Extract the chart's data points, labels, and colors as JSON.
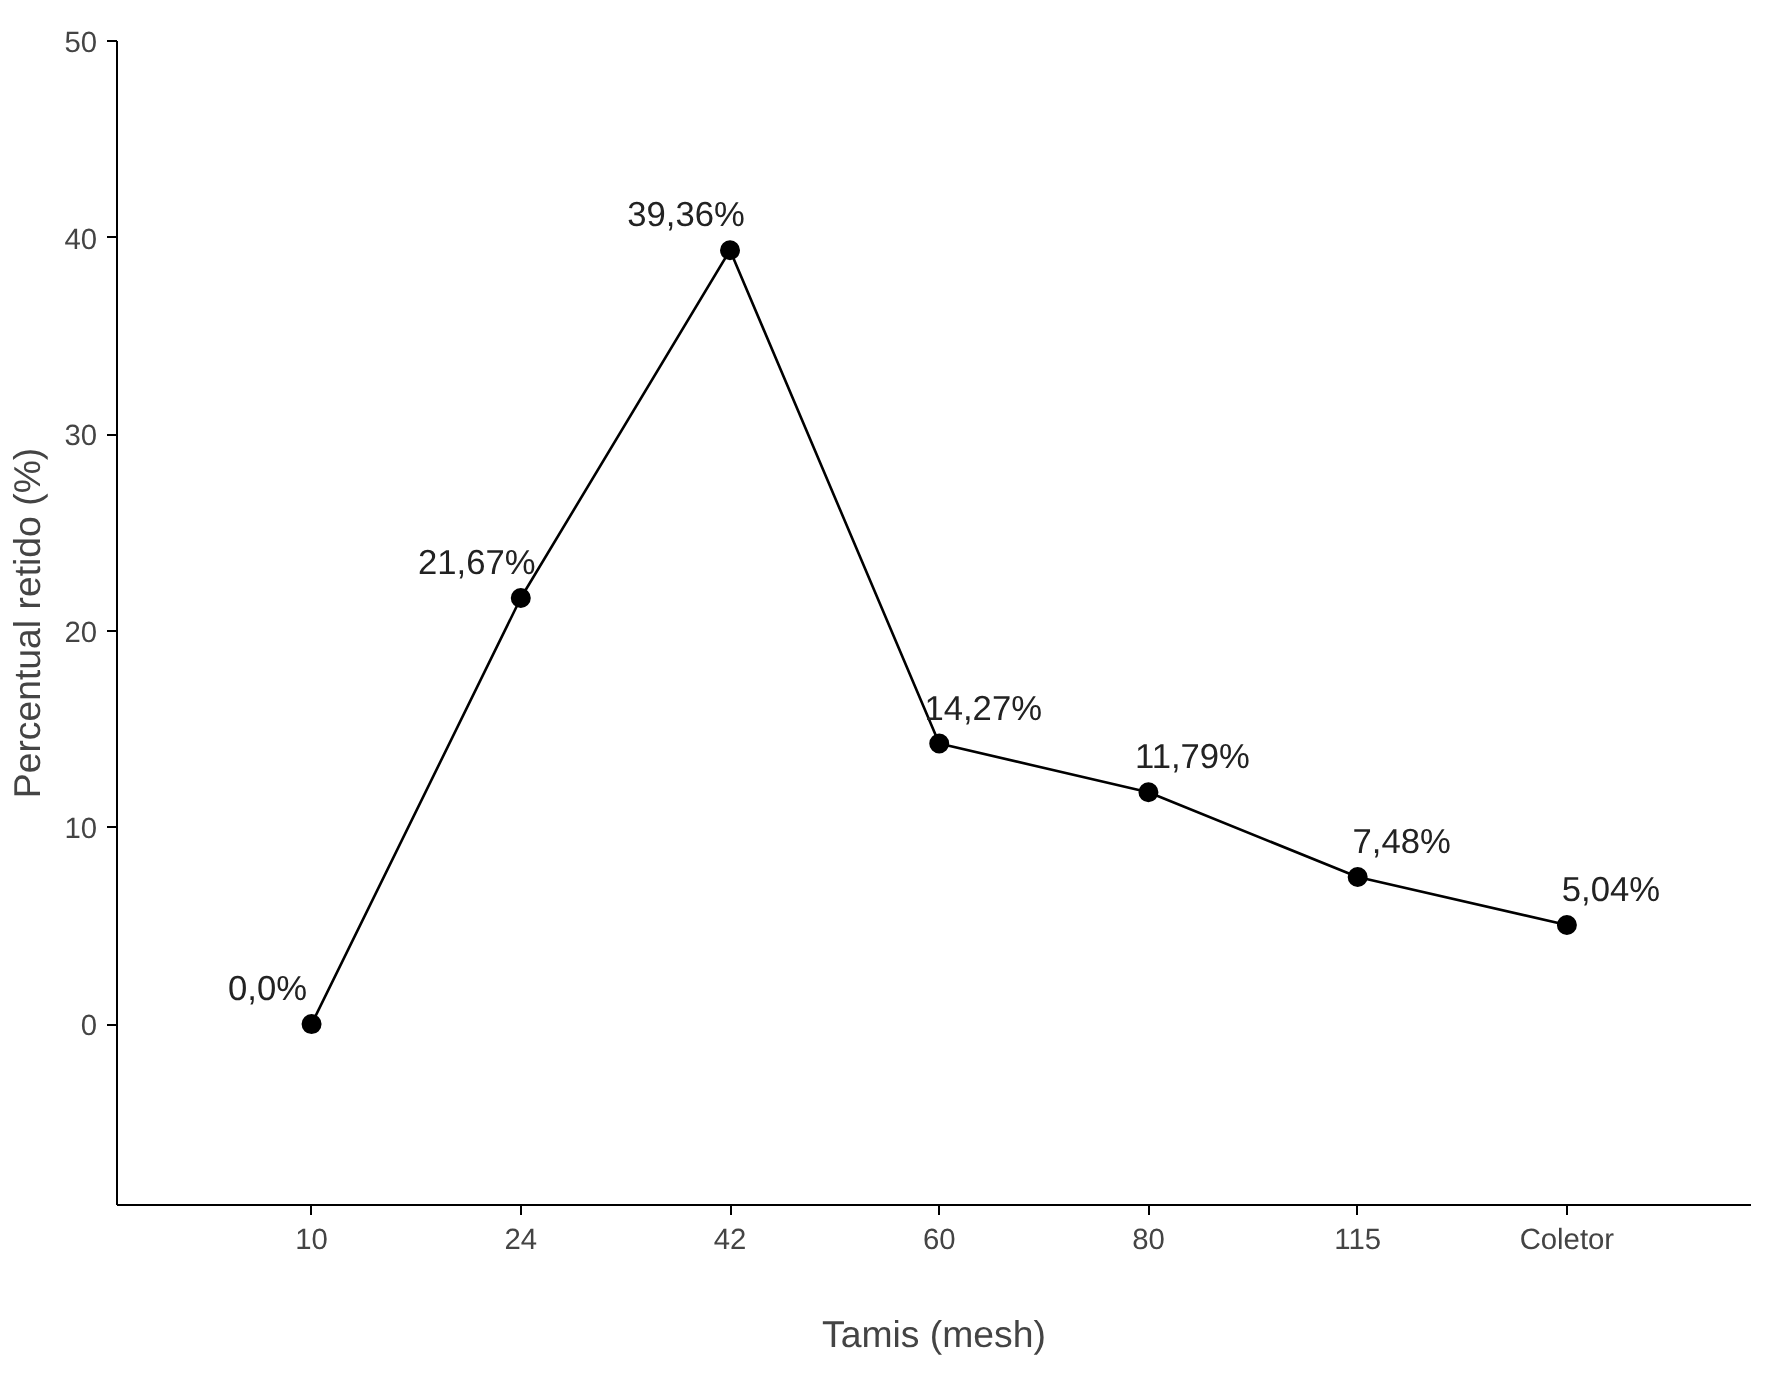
{
  "chart_data": {
    "type": "line",
    "xlabel": "Tamis (mesh)",
    "ylabel": "Percentual retido (%)",
    "categories": [
      "10",
      "24",
      "42",
      "60",
      "80",
      "115",
      "Coletor"
    ],
    "series": [
      {
        "color": "#000000",
        "values": [
          0.0,
          21.67,
          39.36,
          14.27,
          11.79,
          7.48,
          5.04
        ]
      }
    ],
    "value_labels": [
      "0,0%",
      "21,67%",
      "39,36%",
      "14,27%",
      "11,79%",
      "7,48%",
      "5,04%"
    ],
    "ylim": [
      -9.2,
      50
    ],
    "yticks": [
      0,
      10,
      20,
      30,
      40,
      50
    ],
    "grid": false,
    "marker": "circle",
    "line_style": "solid"
  }
}
